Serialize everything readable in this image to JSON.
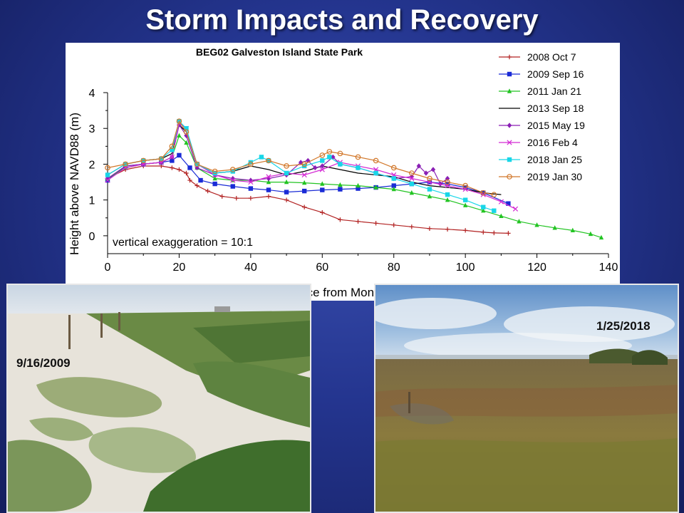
{
  "slide": {
    "title": "Storm Impacts and Recovery"
  },
  "photos": {
    "left": {
      "date": "9/16/2009"
    },
    "right": {
      "date": "1/25/2018"
    }
  },
  "chart_data": {
    "type": "line",
    "title": "BEG02 Galveston Island State Park",
    "xlabel": "Distance from Monument (m)",
    "ylabel": "Height above NAVD88 (m)",
    "xlim": [
      0,
      140
    ],
    "ylim": [
      -0.5,
      4
    ],
    "xticks": [
      0,
      20,
      40,
      60,
      80,
      100,
      120,
      140
    ],
    "yticks": [
      0,
      1,
      2,
      3,
      4
    ],
    "annotation": "vertical exaggeration = 10:1",
    "legend_position": "top-right",
    "series": [
      {
        "name": "2008 Oct 7",
        "color": "#b22222",
        "marker": "plus",
        "x": [
          0,
          5,
          10,
          15,
          18,
          20,
          22,
          23,
          25,
          28,
          32,
          36,
          40,
          45,
          50,
          55,
          60,
          65,
          70,
          75,
          80,
          85,
          90,
          95,
          100,
          105,
          108,
          112
        ],
        "y": [
          1.6,
          1.85,
          1.95,
          1.95,
          1.9,
          1.85,
          1.75,
          1.55,
          1.4,
          1.25,
          1.1,
          1.05,
          1.05,
          1.1,
          1.0,
          0.8,
          0.65,
          0.45,
          0.4,
          0.35,
          0.3,
          0.25,
          0.2,
          0.18,
          0.15,
          0.1,
          0.08,
          0.07
        ]
      },
      {
        "name": "2009 Sep 16",
        "color": "#1a2bd6",
        "marker": "square",
        "x": [
          0,
          5,
          10,
          15,
          18,
          20,
          23,
          26,
          30,
          35,
          40,
          45,
          50,
          55,
          60,
          65,
          70,
          75,
          80,
          85,
          90,
          95,
          100,
          105,
          112
        ],
        "y": [
          1.55,
          1.95,
          2.0,
          2.05,
          2.1,
          2.25,
          1.9,
          1.55,
          1.45,
          1.38,
          1.32,
          1.28,
          1.22,
          1.25,
          1.28,
          1.3,
          1.32,
          1.35,
          1.4,
          1.45,
          1.5,
          1.45,
          1.35,
          1.2,
          0.9
        ]
      },
      {
        "name": "2011 Jan 21",
        "color": "#22c422",
        "marker": "triangle",
        "x": [
          0,
          5,
          10,
          15,
          18,
          20,
          22,
          25,
          30,
          35,
          40,
          45,
          50,
          55,
          60,
          65,
          70,
          75,
          80,
          85,
          90,
          95,
          100,
          105,
          110,
          115,
          120,
          125,
          130,
          135,
          138
        ],
        "y": [
          1.6,
          1.9,
          2.0,
          2.05,
          2.2,
          2.8,
          2.6,
          1.9,
          1.6,
          1.55,
          1.55,
          1.5,
          1.5,
          1.48,
          1.45,
          1.42,
          1.4,
          1.35,
          1.3,
          1.2,
          1.1,
          1.0,
          0.85,
          0.7,
          0.55,
          0.4,
          0.3,
          0.22,
          0.15,
          0.05,
          -0.05
        ]
      },
      {
        "name": "2013 Sep 18",
        "color": "#000000",
        "marker": "none",
        "x": [
          0,
          5,
          10,
          15,
          18,
          20,
          22,
          25,
          30,
          35,
          40,
          45,
          50,
          55,
          60,
          65,
          70,
          75,
          80,
          85,
          90,
          95,
          100,
          105,
          110
        ],
        "y": [
          1.7,
          2.0,
          2.1,
          2.15,
          2.3,
          3.1,
          2.9,
          2.0,
          1.75,
          1.8,
          1.95,
          1.85,
          1.7,
          1.8,
          1.95,
          1.85,
          1.75,
          1.7,
          1.65,
          1.5,
          1.4,
          1.35,
          1.3,
          1.2,
          1.15
        ]
      },
      {
        "name": "2015 May 19",
        "color": "#8a1fb5",
        "marker": "diamond",
        "x": [
          0,
          5,
          10,
          15,
          18,
          20,
          22,
          25,
          30,
          35,
          40,
          45,
          50,
          54,
          56,
          58,
          60,
          63,
          65,
          70,
          75,
          80,
          85,
          87,
          89,
          91,
          93,
          95
        ],
        "y": [
          1.6,
          1.95,
          2.0,
          2.05,
          2.2,
          3.1,
          2.8,
          1.9,
          1.7,
          1.6,
          1.55,
          1.6,
          1.7,
          2.05,
          2.1,
          1.9,
          1.95,
          2.2,
          2.0,
          1.9,
          1.75,
          1.6,
          1.65,
          1.95,
          1.75,
          1.85,
          1.45,
          1.6
        ]
      },
      {
        "name": "2016 Feb 4",
        "color": "#d42ad4",
        "marker": "x",
        "x": [
          0,
          5,
          10,
          15,
          18,
          20,
          22,
          25,
          30,
          35,
          40,
          45,
          50,
          55,
          60,
          65,
          70,
          75,
          80,
          85,
          90,
          95,
          100,
          105,
          110,
          114
        ],
        "y": [
          1.55,
          1.9,
          2.0,
          2.05,
          2.2,
          3.15,
          3.0,
          2.0,
          1.7,
          1.55,
          1.5,
          1.65,
          1.75,
          1.7,
          1.85,
          2.05,
          1.95,
          1.85,
          1.7,
          1.6,
          1.5,
          1.4,
          1.3,
          1.15,
          0.95,
          0.75
        ]
      },
      {
        "name": "2018 Jan 25",
        "color": "#18d6e8",
        "marker": "square",
        "x": [
          0,
          5,
          10,
          15,
          18,
          20,
          22,
          25,
          30,
          35,
          40,
          43,
          45,
          50,
          55,
          60,
          62,
          65,
          70,
          75,
          80,
          85,
          90,
          95,
          100,
          105,
          108
        ],
        "y": [
          1.7,
          2.0,
          2.1,
          2.15,
          2.4,
          3.2,
          3.0,
          2.0,
          1.75,
          1.8,
          2.05,
          2.2,
          2.1,
          1.75,
          1.95,
          2.1,
          2.2,
          2.0,
          1.9,
          1.75,
          1.6,
          1.45,
          1.3,
          1.15,
          1.0,
          0.8,
          0.7
        ]
      },
      {
        "name": "2019 Jan 30",
        "color": "#d2782b",
        "marker": "circle",
        "x": [
          0,
          5,
          10,
          15,
          18,
          20,
          22,
          25,
          30,
          35,
          40,
          45,
          50,
          55,
          60,
          62,
          65,
          70,
          75,
          80,
          85,
          90,
          95,
          100,
          105,
          108
        ],
        "y": [
          1.9,
          2.0,
          2.1,
          2.15,
          2.5,
          3.2,
          2.9,
          2.0,
          1.8,
          1.85,
          2.0,
          2.1,
          1.95,
          2.0,
          2.25,
          2.35,
          2.3,
          2.2,
          2.1,
          1.9,
          1.75,
          1.6,
          1.5,
          1.4,
          1.2,
          1.15
        ]
      }
    ]
  }
}
